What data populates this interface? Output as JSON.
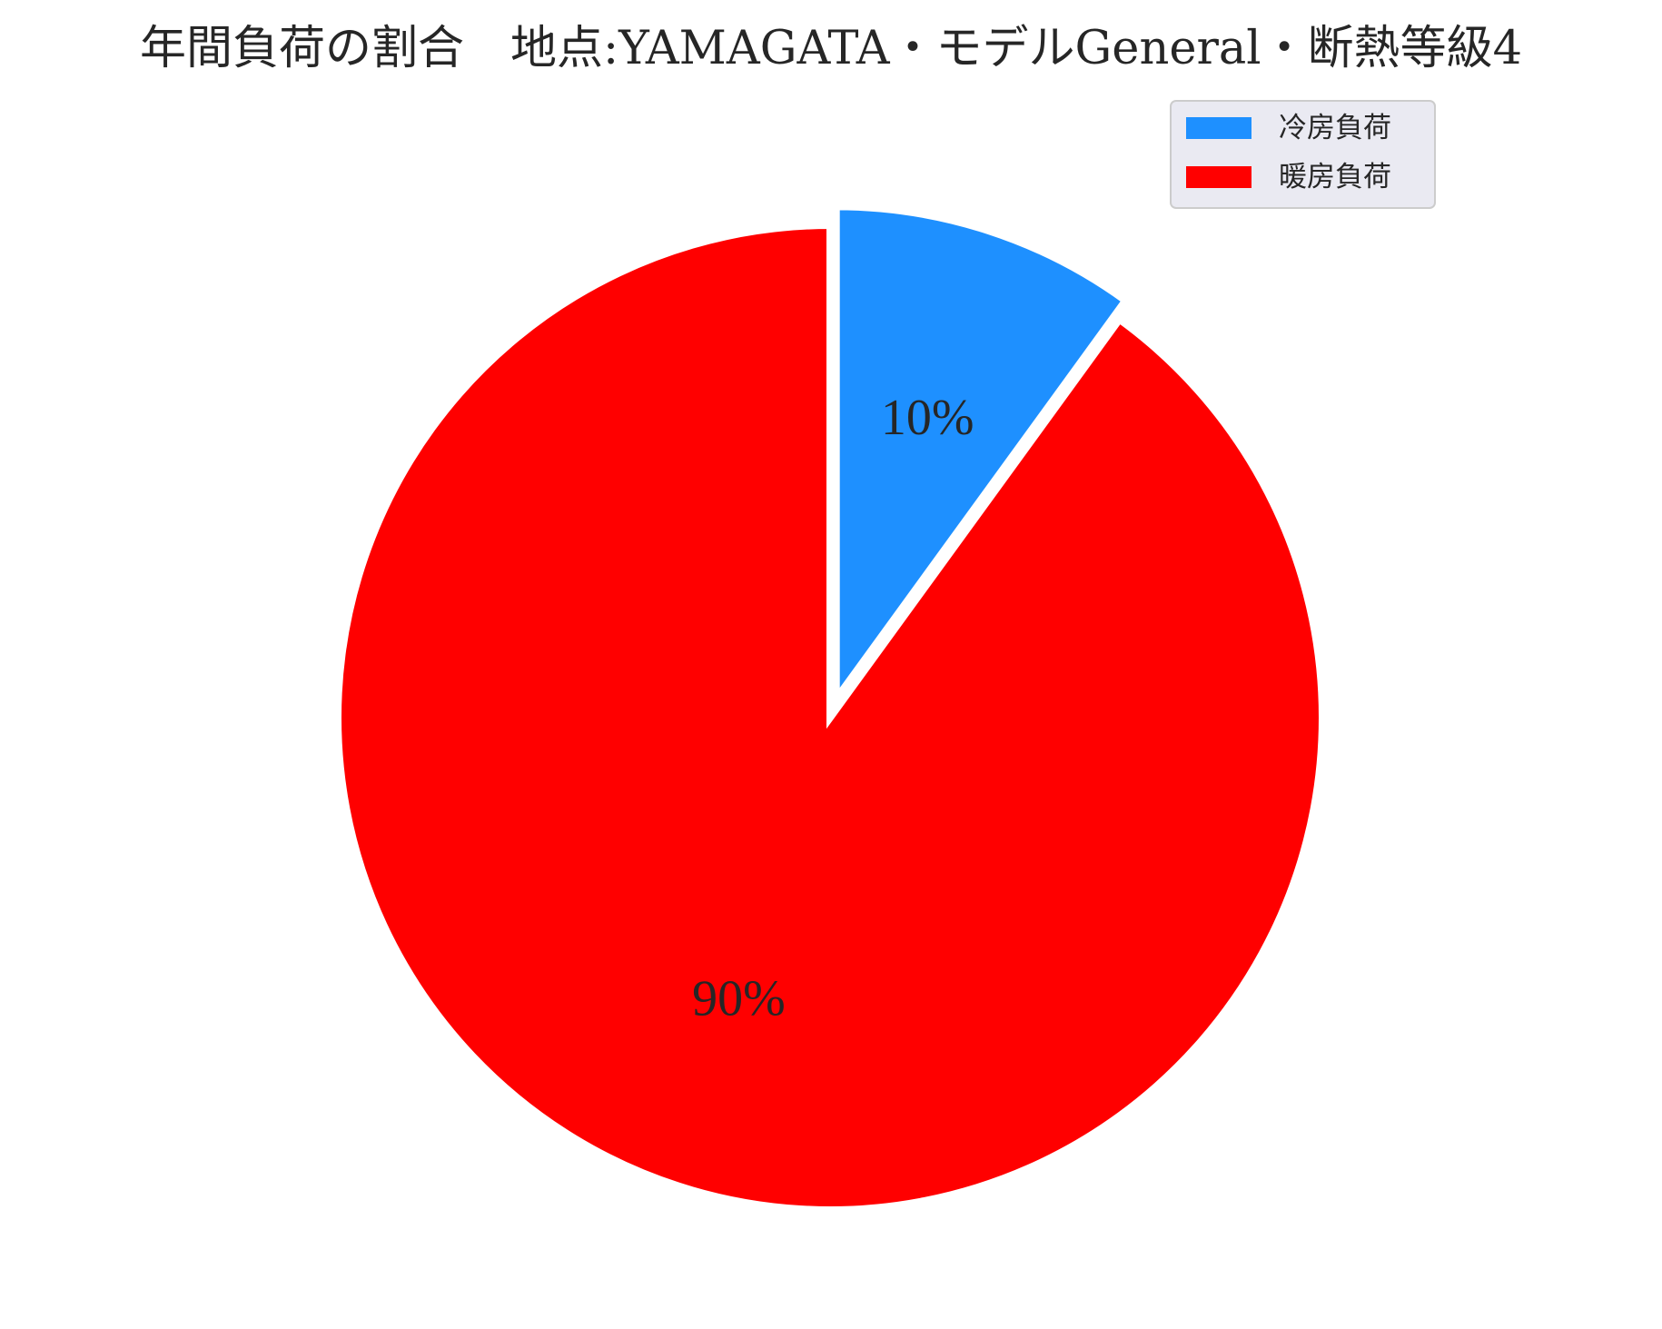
{
  "chart_data": {
    "type": "pie",
    "title": "年間負荷の割合　地点:YAMAGATA・モデルGeneral・断熱等級4",
    "slices": [
      {
        "label": "冷房負荷",
        "value": 10,
        "display": "10%",
        "color": "#1e90ff",
        "exploded": true
      },
      {
        "label": "暖房負荷",
        "value": 90,
        "display": "90%",
        "color": "#ff0000",
        "exploded": false
      }
    ],
    "start_angle": "90° (12 o'clock), clockwise",
    "legend_placement": "top-right",
    "edge_color": "#ffffff"
  }
}
